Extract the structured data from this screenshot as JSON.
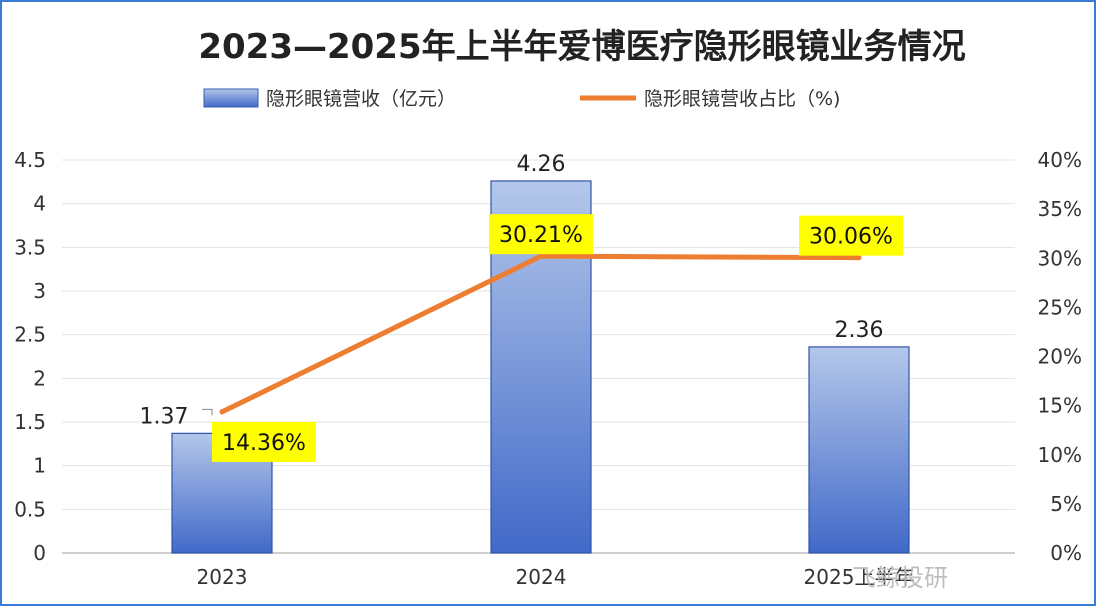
{
  "chart_data": {
    "type": "bar",
    "title": "2023—2025年上半年爱博医疗隐形眼镜业务情况",
    "categories": [
      "2023",
      "2024",
      "2025上半年"
    ],
    "series": [
      {
        "name": "隐形眼镜营收（亿元）",
        "type": "bar",
        "axis": "left",
        "values": [
          1.37,
          4.26,
          2.36
        ],
        "labels": [
          "1.37",
          "4.26",
          "2.36"
        ],
        "color": "#4472c4"
      },
      {
        "name": "隐形眼镜营收占比（%)",
        "type": "line",
        "axis": "right",
        "values": [
          14.36,
          30.21,
          30.06
        ],
        "labels": [
          "14.36%",
          "30.21%",
          "30.06%"
        ],
        "color": "#ed7d31",
        "label_highlight": "#ffff00"
      }
    ],
    "y_left": {
      "min": 0,
      "max": 4.5,
      "ticks": [
        "0",
        "0.5",
        "1",
        "1.5",
        "2",
        "2.5",
        "3",
        "3.5",
        "4",
        "4.5"
      ]
    },
    "y_right": {
      "min": 0,
      "max": 40,
      "ticks": [
        "0%",
        "5%",
        "10%",
        "15%",
        "20%",
        "25%",
        "30%",
        "35%",
        "40%"
      ]
    },
    "grid": true,
    "legend": "top"
  },
  "watermark": "飞鲸投研"
}
